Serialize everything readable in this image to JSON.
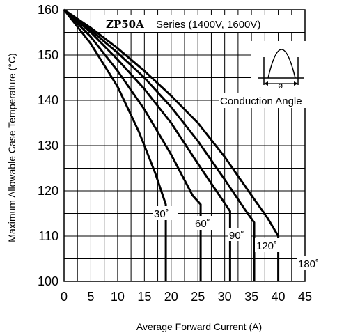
{
  "chart_data": {
    "type": "line",
    "title_part1": "ZP50A",
    "title_part2": "Series (1400V, 1600V)",
    "xlabel": "Average Forward Current (A)",
    "ylabel": "Maximum Allowable Case Temperature (°C)",
    "xlim": [
      0,
      45
    ],
    "ylim": [
      100,
      160
    ],
    "xticks": [
      0,
      5,
      10,
      15,
      20,
      25,
      30,
      35,
      40,
      45
    ],
    "yticks": [
      100,
      110,
      120,
      130,
      140,
      150,
      160
    ],
    "x_minor_step": 2.5,
    "grid": true,
    "inset_label": "Conduction Angle",
    "inset_symbol": "ø",
    "series": [
      {
        "name": "30˚",
        "points": [
          [
            0,
            160
          ],
          [
            5,
            152.5
          ],
          [
            10,
            143
          ],
          [
            14,
            133
          ],
          [
            17,
            124
          ],
          [
            19,
            117
          ],
          [
            19,
            100
          ]
        ]
      },
      {
        "name": "60˚",
        "points": [
          [
            0,
            160
          ],
          [
            5,
            154
          ],
          [
            10,
            146.5
          ],
          [
            15,
            138
          ],
          [
            20,
            128
          ],
          [
            24,
            119
          ],
          [
            25.5,
            117
          ],
          [
            25.5,
            100
          ]
        ]
      },
      {
        "name": "90˚",
        "points": [
          [
            0,
            160
          ],
          [
            5,
            155
          ],
          [
            10,
            149
          ],
          [
            15,
            142.5
          ],
          [
            20,
            135
          ],
          [
            25,
            126
          ],
          [
            29,
            119
          ],
          [
            31,
            115.5
          ],
          [
            31,
            100
          ]
        ]
      },
      {
        "name": "120˚",
        "points": [
          [
            0,
            160
          ],
          [
            5,
            155.5
          ],
          [
            10,
            150.5
          ],
          [
            15,
            145
          ],
          [
            20,
            138.5
          ],
          [
            25,
            131
          ],
          [
            30,
            122.5
          ],
          [
            34,
            115.5
          ],
          [
            35.5,
            113
          ],
          [
            35.5,
            100
          ]
        ]
      },
      {
        "name": "180˚",
        "points": [
          [
            0,
            160
          ],
          [
            5,
            156
          ],
          [
            10,
            151.5
          ],
          [
            15,
            146.5
          ],
          [
            20,
            141
          ],
          [
            25,
            135
          ],
          [
            30,
            127.5
          ],
          [
            35,
            119
          ],
          [
            38,
            114
          ],
          [
            40,
            110
          ],
          [
            40,
            100
          ]
        ]
      }
    ],
    "series_labels": [
      "30˚",
      "60˚",
      "90˚",
      "120˚",
      "180˚"
    ]
  }
}
